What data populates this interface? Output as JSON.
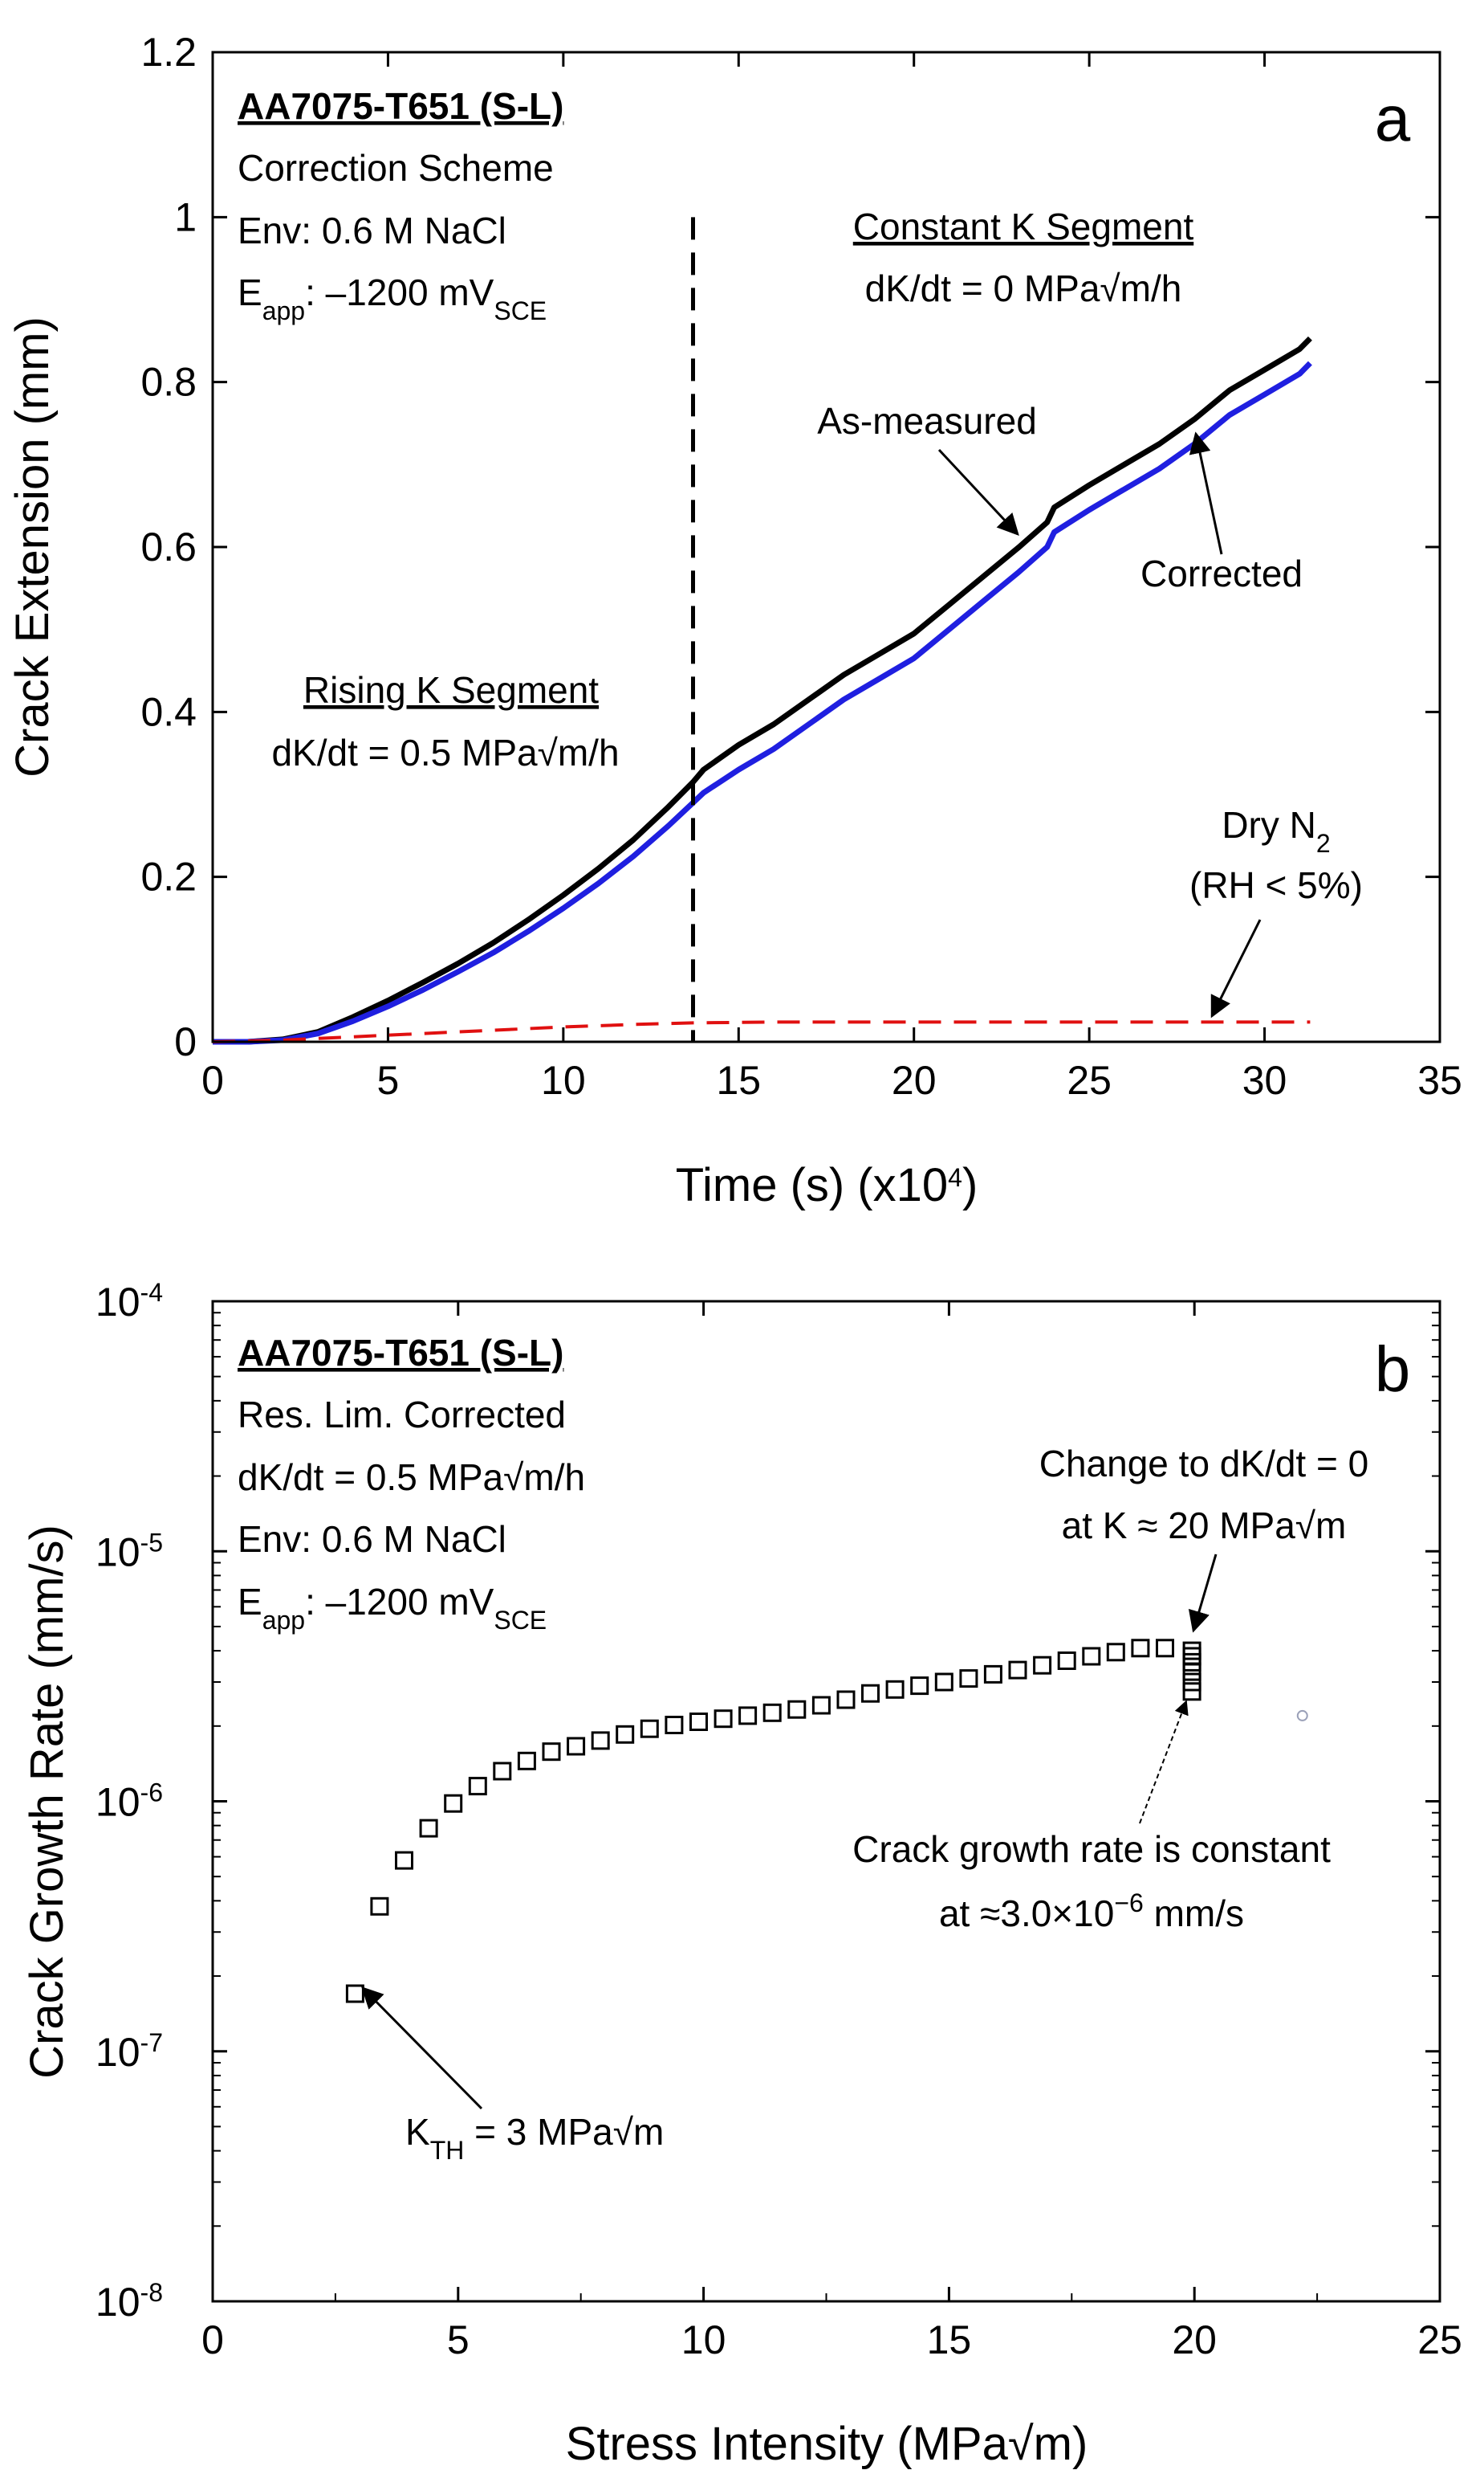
{
  "chart_data": [
    {
      "id": "a",
      "type": "line",
      "panel_label": "a",
      "xlabel": "Time (s) (x10",
      "xlabel_exp": "4",
      "xlabel_close": ")",
      "ylabel": "Crack Extension (mm)",
      "xlim": [
        0,
        35
      ],
      "ylim": [
        0,
        1.2
      ],
      "xticks": [
        "0",
        "5",
        "10",
        "15",
        "20",
        "25",
        "30",
        "35"
      ],
      "yticks": [
        "0",
        "0.2",
        "0.4",
        "0.6",
        "0.8",
        "1",
        "1.2"
      ],
      "vline_x": 13.7,
      "series": [
        {
          "name": "As-measured",
          "color": "#000000",
          "style": "solid",
          "x": [
            0,
            1,
            2,
            3,
            4,
            5,
            6,
            7,
            8,
            9,
            10,
            11,
            12,
            13,
            13.7,
            14,
            15,
            16,
            17,
            18,
            19,
            20,
            21,
            22,
            23,
            23.8,
            24,
            25,
            26,
            27,
            28,
            29,
            30,
            31,
            31.3
          ],
          "y": [
            0,
            0,
            0.003,
            0.012,
            0.03,
            0.05,
            0.072,
            0.095,
            0.12,
            0.148,
            0.178,
            0.21,
            0.245,
            0.285,
            0.315,
            0.33,
            0.36,
            0.385,
            0.415,
            0.445,
            0.47,
            0.495,
            0.53,
            0.565,
            0.6,
            0.63,
            0.648,
            0.675,
            0.7,
            0.725,
            0.755,
            0.79,
            0.815,
            0.84,
            0.853
          ]
        },
        {
          "name": "Corrected",
          "color": "#1f1fe0",
          "style": "solid",
          "x": [
            0,
            1,
            2,
            3,
            4,
            5,
            6,
            7,
            8,
            9,
            10,
            11,
            12,
            13,
            13.7,
            14,
            15,
            16,
            17,
            18,
            19,
            20,
            21,
            22,
            23,
            23.8,
            24,
            25,
            26,
            27,
            28,
            29,
            30,
            31,
            31.3
          ],
          "y": [
            0,
            0,
            0.002,
            0.01,
            0.025,
            0.043,
            0.063,
            0.085,
            0.108,
            0.134,
            0.162,
            0.192,
            0.225,
            0.262,
            0.29,
            0.302,
            0.33,
            0.355,
            0.385,
            0.415,
            0.44,
            0.465,
            0.5,
            0.535,
            0.57,
            0.6,
            0.618,
            0.645,
            0.67,
            0.695,
            0.725,
            0.76,
            0.785,
            0.81,
            0.823
          ]
        },
        {
          "name": "Dry N2",
          "color": "#e01010",
          "style": "dashed",
          "x": [
            0,
            2,
            4,
            6,
            8,
            10,
            12,
            13.7,
            16,
            20,
            25,
            31.3
          ],
          "y": [
            0,
            0.002,
            0.006,
            0.01,
            0.014,
            0.018,
            0.021,
            0.023,
            0.024,
            0.024,
            0.024,
            0.024
          ]
        }
      ],
      "annotations": {
        "material": "AA7075-T651 (S-L)",
        "scheme": "Correction Scheme",
        "env": "Env: 0.6 M NaCl",
        "eapp_pre": "E",
        "eapp_sub": "app",
        "eapp_mid": ": –1200 mV",
        "eapp_sub2": "SCE",
        "constant_title": "Constant K Segment",
        "constant_rate": "dK/dt = 0 MPa√m/h",
        "rising_title": "Rising K Segment",
        "rising_rate": "dK/dt = 0.5 MPa√m/h",
        "as_measured": "As-measured",
        "corrected": "Corrected",
        "dry_pre": "Dry N",
        "dry_sub": "2",
        "rh": "(RH < 5%)"
      }
    },
    {
      "id": "b",
      "type": "scatter",
      "panel_label": "b",
      "xlabel": "Stress Intensity (MPa√m)",
      "ylabel": "Crack Growth Rate (mm/s)",
      "xlim": [
        0,
        25
      ],
      "ylim_log10": [
        -8,
        -4
      ],
      "yscale": "log",
      "xticks": [
        "0",
        "5",
        "10",
        "15",
        "20",
        "25"
      ],
      "yticks": [
        {
          "base": "10",
          "exp": "-8"
        },
        {
          "base": "10",
          "exp": "-7"
        },
        {
          "base": "10",
          "exp": "-6"
        },
        {
          "base": "10",
          "exp": "-5"
        },
        {
          "base": "10",
          "exp": "-4"
        }
      ],
      "series": [
        {
          "name": "Res. Lim. Corrected",
          "marker": "open-square",
          "x": [
            2.9,
            3.4,
            3.9,
            4.4,
            4.9,
            5.4,
            5.9,
            6.4,
            6.9,
            7.4,
            7.9,
            8.4,
            8.9,
            9.4,
            9.9,
            10.4,
            10.9,
            11.4,
            11.9,
            12.4,
            12.9,
            13.4,
            13.9,
            14.4,
            14.9,
            15.4,
            15.9,
            16.4,
            16.9,
            17.4,
            17.9,
            18.4,
            18.9,
            19.4,
            19.95,
            19.95,
            19.95,
            19.95,
            19.95,
            19.95
          ],
          "y": [
            1.7e-07,
            3.8e-07,
            5.8e-07,
            7.8e-07,
            9.8e-07,
            1.15e-06,
            1.32e-06,
            1.45e-06,
            1.58e-06,
            1.66e-06,
            1.75e-06,
            1.85e-06,
            1.95e-06,
            2.02e-06,
            2.08e-06,
            2.14e-06,
            2.2e-06,
            2.26e-06,
            2.33e-06,
            2.42e-06,
            2.55e-06,
            2.7e-06,
            2.8e-06,
            2.9e-06,
            3e-06,
            3.1e-06,
            3.22e-06,
            3.35e-06,
            3.5e-06,
            3.65e-06,
            3.8e-06,
            3.95e-06,
            4.1e-06,
            4.1e-06,
            4e-06,
            3.8e-06,
            3.6e-06,
            3.3e-06,
            3e-06,
            2.75e-06
          ]
        }
      ],
      "stray_point": {
        "x": 22.2,
        "y": 2.2e-06
      },
      "annotations": {
        "material": "AA7075-T651 (S-L)",
        "scheme": "Res. Lim. Corrected",
        "rate": "dK/dt = 0.5 MPa√m/h",
        "env": "Env: 0.6 M NaCl",
        "eapp_pre": "E",
        "eapp_sub": "app",
        "eapp_mid": ": –1200 mV",
        "eapp_sub2": "SCE",
        "change_line1": "Change to dK/dt = 0",
        "change_line2": "at K ≈ 20 MPa√m",
        "const_line1": "Crack growth rate is constant",
        "const_line2_pre": "at ≈3.0×10",
        "const_line2_exp": "−6",
        "const_line2_post": " mm/s",
        "kth_pre": "K",
        "kth_sub": "TH",
        "kth_post": " = 3 MPa√m"
      }
    }
  ]
}
